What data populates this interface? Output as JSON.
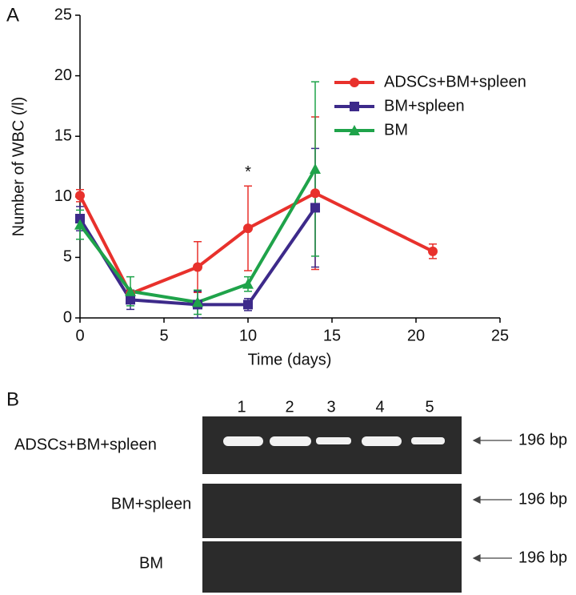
{
  "chart_data": {
    "type": "line",
    "panel_label": "A",
    "xlabel": "Time (days)",
    "ylabel": "Number of WBC (/l)",
    "xlim": [
      0,
      25
    ],
    "xticks": [
      0,
      5,
      10,
      15,
      20,
      25
    ],
    "ylim": [
      0,
      25
    ],
    "yticks": [
      0,
      5,
      10,
      15,
      20,
      25
    ],
    "series": [
      {
        "name": "ADSCs+BM+spleen",
        "color": "#e8312c",
        "marker": "circle",
        "x": [
          0,
          3,
          7,
          10,
          14,
          21
        ],
        "values": [
          10.1,
          2.0,
          4.2,
          7.4,
          10.3,
          5.5
        ],
        "errors": [
          0.5,
          0.3,
          2.1,
          3.5,
          6.3,
          0.6
        ]
      },
      {
        "name": "BM+spleen",
        "color": "#3d2a8a",
        "marker": "square",
        "x": [
          0,
          3,
          7,
          10,
          14
        ],
        "values": [
          8.2,
          1.5,
          1.1,
          1.1,
          9.1
        ],
        "errors": [
          1.0,
          0.8,
          1.1,
          0.5,
          4.9
        ]
      },
      {
        "name": "BM",
        "color": "#1fa34a",
        "marker": "triangle",
        "x": [
          0,
          3,
          7,
          10,
          14
        ],
        "values": [
          7.7,
          2.2,
          1.3,
          2.8,
          12.3
        ],
        "errors": [
          1.2,
          1.2,
          1.0,
          0.6,
          7.2
        ]
      }
    ],
    "annotations": [
      {
        "text": "*",
        "x": 10,
        "y": 12.0
      }
    ],
    "legend": "upper right"
  },
  "gel": {
    "panel_label": "B",
    "lanes": [
      "1",
      "2",
      "3",
      "4",
      "5"
    ],
    "rows": [
      {
        "label": "ADSCs+BM+spleen",
        "size": "196 bp"
      },
      {
        "label": "BM+spleen",
        "size": "196 bp"
      },
      {
        "label": "BM",
        "size": "196 bp"
      }
    ]
  }
}
